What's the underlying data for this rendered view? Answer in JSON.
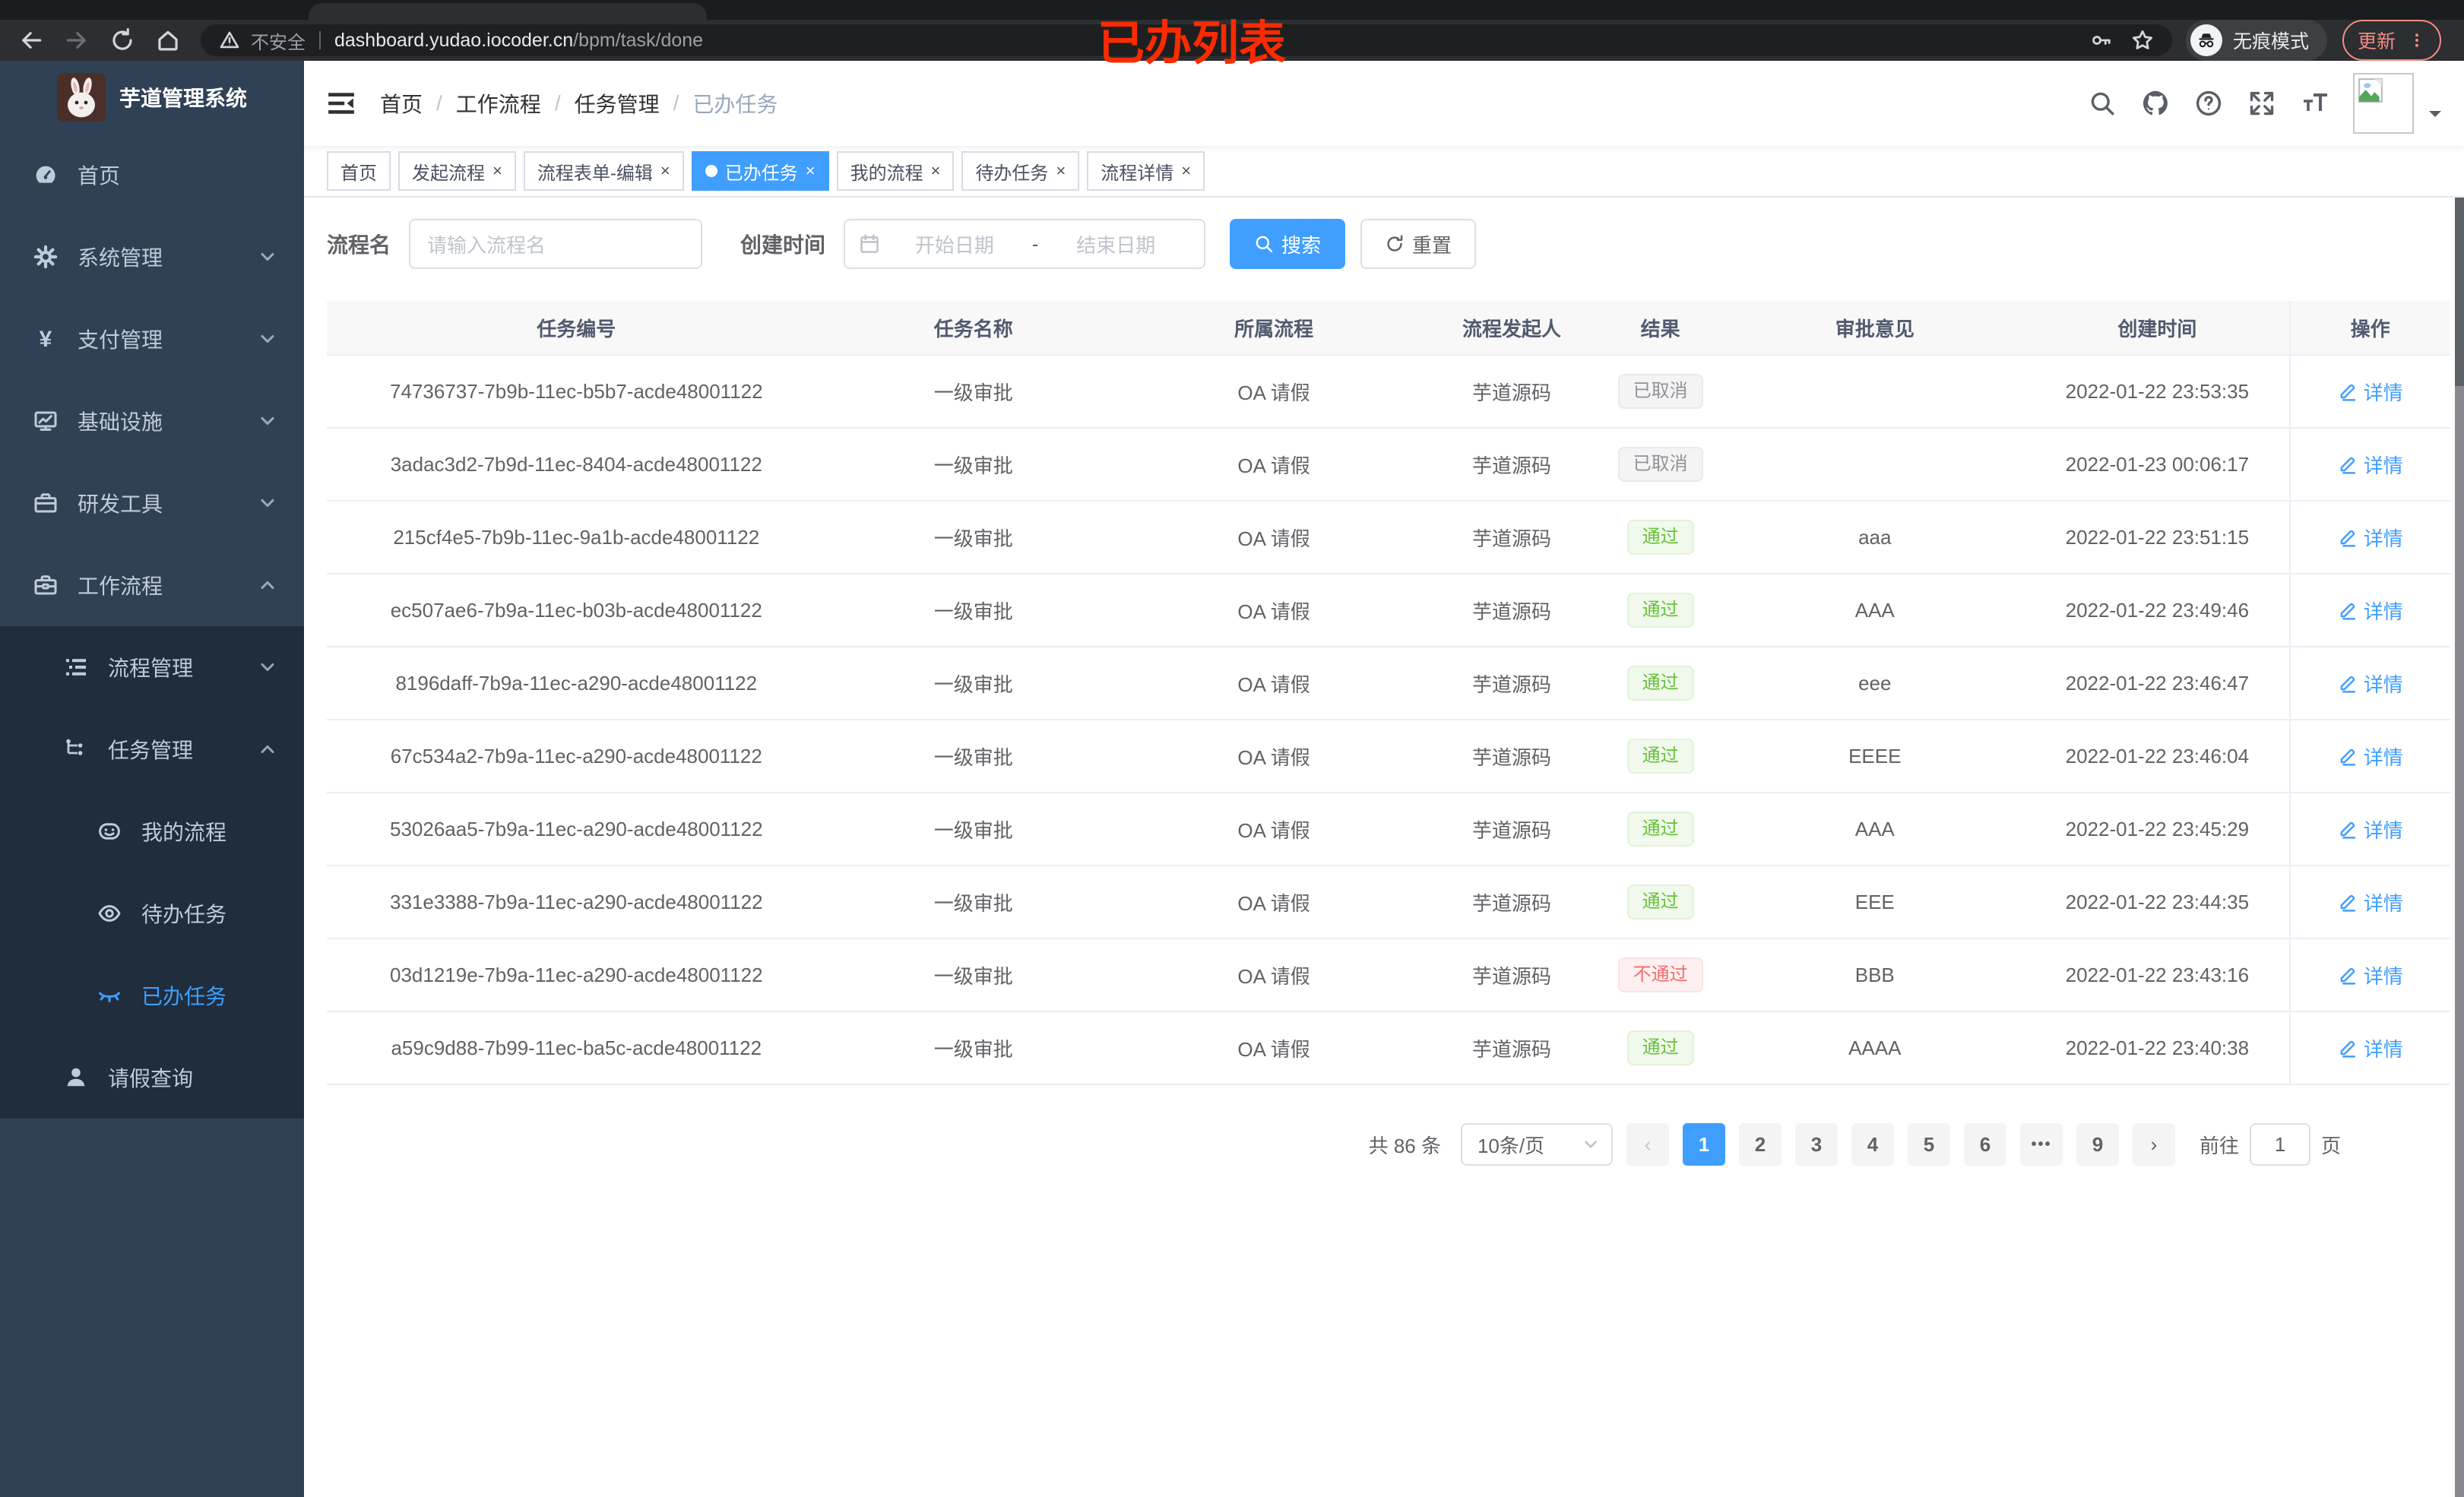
{
  "browser": {
    "security_label": "不安全",
    "url_host": "dashboard.yudao.iocoder.cn",
    "url_path": "/bpm/task/done",
    "incognito_label": "无痕模式",
    "update_label": "更新"
  },
  "annotation": "已办列表",
  "colors": {
    "primary": "#409eff",
    "success": "#67c23a",
    "danger": "#f56c6c",
    "info": "#909399",
    "sidebar_bg": "#304156",
    "submenu_bg": "#1f2d3d"
  },
  "sidebar": {
    "title": "芋道管理系统",
    "menu": [
      {
        "label": "首页",
        "icon": "dashboard-icon",
        "level": 1
      },
      {
        "label": "系统管理",
        "icon": "gear-icon",
        "level": 1,
        "arrow": "down"
      },
      {
        "label": "支付管理",
        "icon": "yen-icon",
        "level": 1,
        "arrow": "down"
      },
      {
        "label": "基础设施",
        "icon": "monitor-icon",
        "level": 1,
        "arrow": "down"
      },
      {
        "label": "研发工具",
        "icon": "suitcase-icon",
        "level": 1,
        "arrow": "down"
      },
      {
        "label": "工作流程",
        "icon": "toolbox-icon",
        "level": 1,
        "arrow": "up"
      },
      {
        "label": "流程管理",
        "icon": "list-icon",
        "level": 2,
        "arrow": "down",
        "dark": true
      },
      {
        "label": "任务管理",
        "icon": "flow-icon",
        "level": 2,
        "arrow": "up",
        "dark": true
      },
      {
        "label": "我的流程",
        "icon": "robot-icon",
        "level": 3,
        "dark": true
      },
      {
        "label": "待办任务",
        "icon": "eye-open-icon",
        "level": 3,
        "dark": true
      },
      {
        "label": "已办任务",
        "icon": "eye-closed-icon",
        "level": 3,
        "dark": true,
        "active": true
      },
      {
        "label": "请假查询",
        "icon": "user-icon",
        "level": 2,
        "dark": true
      }
    ]
  },
  "navbar": {
    "breadcrumb": [
      "首页",
      "工作流程",
      "任务管理",
      "已办任务"
    ]
  },
  "tags": [
    {
      "label": "首页",
      "closable": false,
      "active": false
    },
    {
      "label": "发起流程",
      "closable": true,
      "active": false
    },
    {
      "label": "流程表单-编辑",
      "closable": true,
      "active": false
    },
    {
      "label": "已办任务",
      "closable": true,
      "active": true
    },
    {
      "label": "我的流程",
      "closable": true,
      "active": false
    },
    {
      "label": "待办任务",
      "closable": true,
      "active": false
    },
    {
      "label": "流程详情",
      "closable": true,
      "active": false
    }
  ],
  "search": {
    "name_label": "流程名",
    "name_placeholder": "请输入流程名",
    "time_label": "创建时间",
    "start_placeholder": "开始日期",
    "range_separator": "-",
    "end_placeholder": "结束日期",
    "search_button": "搜索",
    "reset_button": "重置"
  },
  "table": {
    "headers": [
      "任务编号",
      "任务名称",
      "所属流程",
      "流程发起人",
      "结果",
      "审批意见",
      "创建时间",
      "操作"
    ],
    "action_label": "详情",
    "rows": [
      {
        "id": "74736737-7b9b-11ec-b5b7-acde48001122",
        "name": "一级审批",
        "process": "OA 请假",
        "starter": "芋道源码",
        "result": "已取消",
        "result_type": "info",
        "comment": "",
        "time": "2022-01-22 23:53:35"
      },
      {
        "id": "3adac3d2-7b9d-11ec-8404-acde48001122",
        "name": "一级审批",
        "process": "OA 请假",
        "starter": "芋道源码",
        "result": "已取消",
        "result_type": "info",
        "comment": "",
        "time": "2022-01-23 00:06:17"
      },
      {
        "id": "215cf4e5-7b9b-11ec-9a1b-acde48001122",
        "name": "一级审批",
        "process": "OA 请假",
        "starter": "芋道源码",
        "result": "通过",
        "result_type": "success",
        "comment": "aaa",
        "time": "2022-01-22 23:51:15"
      },
      {
        "id": "ec507ae6-7b9a-11ec-b03b-acde48001122",
        "name": "一级审批",
        "process": "OA 请假",
        "starter": "芋道源码",
        "result": "通过",
        "result_type": "success",
        "comment": "AAA",
        "time": "2022-01-22 23:49:46"
      },
      {
        "id": "8196daff-7b9a-11ec-a290-acde48001122",
        "name": "一级审批",
        "process": "OA 请假",
        "starter": "芋道源码",
        "result": "通过",
        "result_type": "success",
        "comment": "eee",
        "time": "2022-01-22 23:46:47"
      },
      {
        "id": "67c534a2-7b9a-11ec-a290-acde48001122",
        "name": "一级审批",
        "process": "OA 请假",
        "starter": "芋道源码",
        "result": "通过",
        "result_type": "success",
        "comment": "EEEE",
        "time": "2022-01-22 23:46:04"
      },
      {
        "id": "53026aa5-7b9a-11ec-a290-acde48001122",
        "name": "一级审批",
        "process": "OA 请假",
        "starter": "芋道源码",
        "result": "通过",
        "result_type": "success",
        "comment": "AAA",
        "time": "2022-01-22 23:45:29"
      },
      {
        "id": "331e3388-7b9a-11ec-a290-acde48001122",
        "name": "一级审批",
        "process": "OA 请假",
        "starter": "芋道源码",
        "result": "通过",
        "result_type": "success",
        "comment": "EEE",
        "time": "2022-01-22 23:44:35"
      },
      {
        "id": "03d1219e-7b9a-11ec-a290-acde48001122",
        "name": "一级审批",
        "process": "OA 请假",
        "starter": "芋道源码",
        "result": "不通过",
        "result_type": "danger",
        "comment": "BBB",
        "time": "2022-01-22 23:43:16"
      },
      {
        "id": "a59c9d88-7b99-11ec-ba5c-acde48001122",
        "name": "一级审批",
        "process": "OA 请假",
        "starter": "芋道源码",
        "result": "通过",
        "result_type": "success",
        "comment": "AAAA",
        "time": "2022-01-22 23:40:38"
      }
    ]
  },
  "pagination": {
    "total": "共 86 条",
    "page_size": "10条/页",
    "pages": [
      "1",
      "2",
      "3",
      "4",
      "5",
      "6",
      "•••",
      "9"
    ],
    "active_page": "1",
    "prev": "‹",
    "next": "›",
    "goto_label": "前往",
    "goto_value": "1",
    "goto_suffix": "页"
  }
}
